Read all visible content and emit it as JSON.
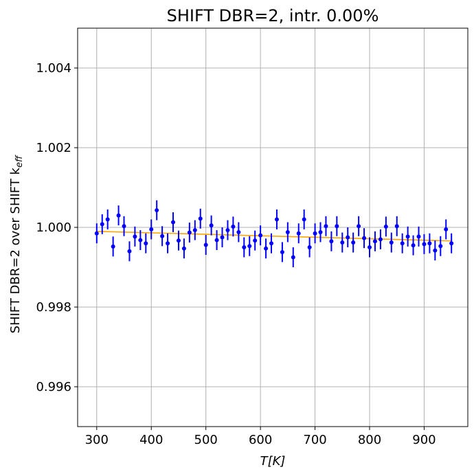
{
  "chart_data": {
    "type": "scatter",
    "title": "SHIFT DBR=2, intr. 0.00%",
    "xlabel": "T[K]",
    "ylabel": "SHIFT DBR=2 over SHIFT k_eff",
    "ylabel_main": "SHIFT DBR=2 over SHIFT k",
    "ylabel_sub": "eff",
    "xlim": [
      265,
      980
    ],
    "ylim": [
      0.995,
      1.005
    ],
    "xticks": [
      300,
      400,
      500,
      600,
      700,
      800,
      900
    ],
    "xtick_labels": [
      "300",
      "400",
      "500",
      "600",
      "700",
      "800",
      "900"
    ],
    "yticks": [
      0.996,
      0.998,
      1.0,
      1.002,
      1.004
    ],
    "ytick_labels": [
      "0.996",
      "0.998",
      "1.000",
      "1.002",
      "1.004"
    ],
    "grid": true,
    "colors": {
      "points": "#0000ff",
      "fit": "#ffa500"
    },
    "series": [
      {
        "kind": "errorbar",
        "x": [
          300,
          310,
          320,
          330,
          340,
          350,
          360,
          370,
          380,
          390,
          400,
          410,
          420,
          430,
          440,
          450,
          460,
          470,
          480,
          490,
          500,
          510,
          520,
          530,
          540,
          550,
          560,
          570,
          580,
          590,
          600,
          610,
          620,
          630,
          640,
          650,
          660,
          670,
          680,
          690,
          700,
          710,
          720,
          730,
          740,
          750,
          760,
          770,
          780,
          790,
          800,
          810,
          820,
          830,
          840,
          850,
          860,
          870,
          880,
          890,
          900,
          910,
          920,
          930,
          940,
          950
        ],
        "y": [
          0.99985,
          1.00008,
          1.0002,
          0.99952,
          1.0003,
          1.00003,
          0.9994,
          0.99977,
          0.99968,
          0.9996,
          0.99995,
          1.00043,
          0.99978,
          0.9996,
          1.00013,
          0.99967,
          0.99947,
          0.99987,
          0.99993,
          1.00022,
          0.99956,
          1.00005,
          0.99968,
          0.99975,
          0.99993,
          1.00002,
          0.99988,
          0.9995,
          0.99953,
          0.99967,
          0.9998,
          0.99947,
          0.9996,
          1.0002,
          0.99938,
          0.99988,
          0.99925,
          0.99985,
          1.0002,
          0.9995,
          0.99985,
          0.99988,
          1.00003,
          0.99965,
          1.00003,
          0.99962,
          0.99975,
          0.99962,
          1.00003,
          0.99973,
          0.9995,
          0.99965,
          0.9997,
          1.00002,
          0.99962,
          1.00003,
          0.9996,
          0.99977,
          0.99955,
          0.99977,
          0.99958,
          0.9996,
          0.99942,
          0.99953,
          0.99995,
          0.9996
        ],
        "yerr": 0.00025
      },
      {
        "kind": "line",
        "x": [
          300,
          950
        ],
        "y": [
          0.9999,
          0.99966
        ]
      }
    ]
  }
}
